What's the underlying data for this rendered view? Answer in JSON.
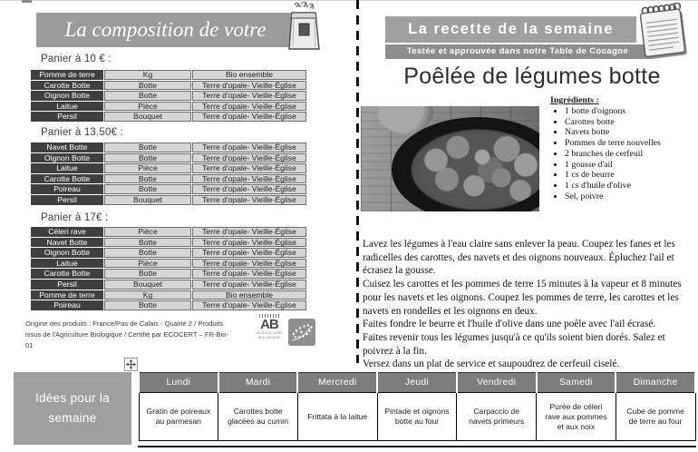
{
  "left": {
    "header_title": "La composition de votre",
    "baskets": [
      {
        "label": "Panier à 10 € :",
        "rows": [
          [
            "Pomme de terre",
            "Kg",
            "Bio ensemble"
          ],
          [
            "Carotte Botte",
            "Botte",
            "Terre d'opale- Vieille-Église"
          ],
          [
            "Oignon Botte",
            "Botte",
            "Terre d'opale- Vieille-Église"
          ],
          [
            "Laitue",
            "Pièce",
            "Terre d'opale- Vieille-Église"
          ],
          [
            "Persil",
            "Bouquet",
            "Terre d'opale- Vieille-Église"
          ]
        ]
      },
      {
        "label": "Panier à 13.50€ :",
        "rows": [
          [
            "Navet Botte",
            "Botte",
            "Terre d'opale- Vieille-Église"
          ],
          [
            "Oignon Botte",
            "Botte",
            "Terre d'opale- Vieille-Église"
          ],
          [
            "Laitue",
            "Pièce",
            "Terre d'opale- Vieille-Église"
          ],
          [
            "Carotte Botte",
            "Botte",
            "Terre d'opale- Vieille-Église"
          ],
          [
            "Poireau",
            "Botte",
            "Terre d'opale- Vieille-Église"
          ],
          [
            "Persil",
            "Bouquet",
            "Terre d'opale- Vieille-Église"
          ]
        ]
      },
      {
        "label": "Panier à 17€ :",
        "rows": [
          [
            "Céleri rave",
            "Pièce",
            "Terre d'opale- Vieille-Église"
          ],
          [
            "Navet Botte",
            "Botte",
            "Terre d'opale- Vieille-Église"
          ],
          [
            "Oignon Botte",
            "Botte",
            "Terre d'opale- Vieille-Église"
          ],
          [
            "Laitue",
            "Pièce",
            "Terre d'opale- Vieille-Église"
          ],
          [
            "Carotte Botte",
            "Botte",
            "Terre d'opale- Vieille-Église"
          ],
          [
            "Persil",
            "Bouquet",
            "Terre d'opale- Vieille-Église"
          ],
          [
            "Pomme de terre",
            "Kg",
            "Bio ensemble"
          ],
          [
            "Poireau",
            "Botte",
            "Terre d'opale- Vieille-Église"
          ]
        ]
      }
    ],
    "origin_text": "Origine des produits : France/Pas de Calais - Qualité 2 / Produits issus de l'Agriculture Biologique / Certifié par ECOCERT – FR-Bio-01",
    "ab_logo": {
      "main": "AB",
      "sub1": "AGRICULTURE",
      "sub2": "BIOLOGIQUE"
    }
  },
  "right": {
    "banner_title": "La recette de la semaine",
    "banner_subtitle": "Testée et approuvée dans notre Table de Cocagne",
    "recipe_title": "Poêlée de légumes botte",
    "ingredients_label": "Ingrédients :",
    "ingredients": [
      "1 botte d'oignons",
      "Carottes botte",
      "Navets botte",
      "Pommes de terre nouvelles",
      "2 branches de cerfeuil",
      "1 gousse d'ail",
      "1 cs de beurre",
      "1 cs d'huile d'olive",
      "Sel, poivre"
    ],
    "instructions": [
      "Lavez les légumes à l'eau claire sans enlever la peau. Coupez les fanes et les radicelles des carottes, des navets et des oignons nouveaux. Épluchez l'ail et écrasez la gousse.",
      "Cuisez les carottes et les pommes de terre 15 minutes à la vapeur et 8 minutes pour les navets et les oignons. Coupez les pommes de terre, les carottes et les navets en rondelles et les oignons en deux.",
      "Faites fondre le beurre et l'huile d'olive dans une poêle avec l'ail écrasé.",
      "Faites revenir tous les légumes jusqu'à ce qu'ils soient bien dorés. Salez et poivrez à la fin.",
      "Versez dans un plat de service et saupoudrez de cerfeuil ciselé."
    ]
  },
  "bottom": {
    "ideas_label": "Idées pour la semaine",
    "days": [
      "Lundi",
      "Mardi",
      "Mercredi",
      "Jeudi",
      "Vendredi",
      "Samedi",
      "Dimanche"
    ],
    "meals": [
      "Gratin de poireaux au parmesan",
      "Carottes botte glacées au cumin",
      "Frittata à la laitue",
      "Pintade et oignons botte au four",
      "Carpaccio de navets primeurs",
      "Purée de céleri rave aux pommes et aux noix",
      "Cube de pomme de terre au four"
    ]
  },
  "colors": {
    "banner_gray": "#9b9b9b",
    "sub_banner_gray": "#8d8d8d",
    "dark_cell": "#3f3f3f",
    "light_cell": "#d6d6d6",
    "day_header_gray": "#7d7d7d"
  },
  "icons": [
    "grocery-bag-icon",
    "notepad-icon",
    "table-move-handle-icon",
    "ab-organic-logo",
    "eu-organic-leaf-logo"
  ]
}
